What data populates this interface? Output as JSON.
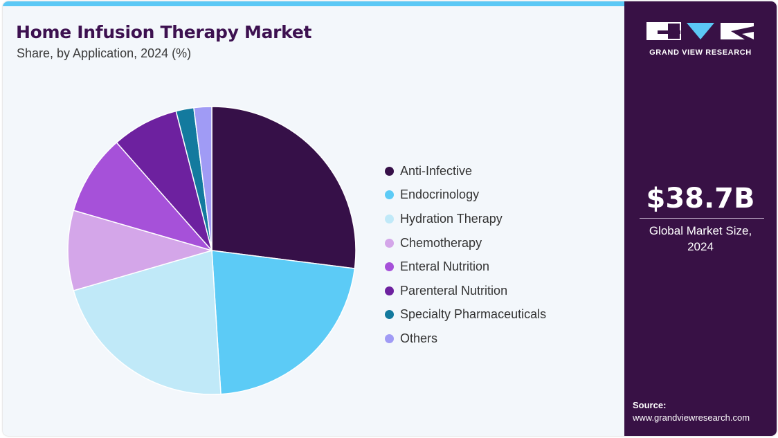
{
  "header": {
    "title": "Home Infusion Therapy Market",
    "subtitle": "Share, by Application, 2024 (%)"
  },
  "chart_data": {
    "type": "pie",
    "title": "Home Infusion Therapy Market",
    "subtitle": "Share, by Application, 2024 (%)",
    "legend_position": "right",
    "slices": [
      {
        "label": "Anti-Infective",
        "value": 27.0,
        "color": "#361048"
      },
      {
        "label": "Endocrinology",
        "value": 22.0,
        "color": "#5ccbf6"
      },
      {
        "label": "Hydration Therapy",
        "value": 21.5,
        "color": "#c0e9f8"
      },
      {
        "label": "Chemotherapy",
        "value": 9.0,
        "color": "#d4a6e9"
      },
      {
        "label": "Enteral Nutrition",
        "value": 9.0,
        "color": "#a651d9"
      },
      {
        "label": "Parenteral Nutrition",
        "value": 7.5,
        "color": "#6d219f"
      },
      {
        "label": "Specialty Pharmaceuticals",
        "value": 2.0,
        "color": "#137a9e"
      },
      {
        "label": "Others",
        "value": 2.0,
        "color": "#a09bf5"
      }
    ]
  },
  "sidebar": {
    "logo_text": "GRAND VIEW RESEARCH",
    "logo_icon": "gvr-logo",
    "market_size": "$38.7B",
    "market_size_caption_line1": "Global Market Size,",
    "market_size_caption_line2": "2024",
    "source_label": "Source:",
    "source_url": "www.grandviewresearch.com"
  },
  "colors": {
    "accent_bar": "#5bc8f5",
    "sidebar_bg": "#381145",
    "title": "#3d1150",
    "background": "#f3f7fb"
  }
}
